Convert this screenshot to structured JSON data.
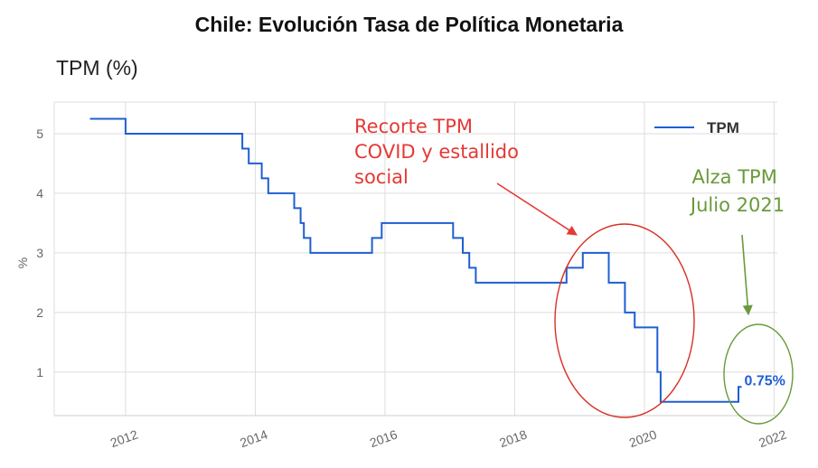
{
  "chart_data": {
    "type": "line",
    "title": "Chile: Evolución Tasa de Política Monetaria",
    "subtitle": "TPM (%)",
    "xlabel": "",
    "ylabel": "%",
    "xlim": [
      2010.9,
      2022.05
    ],
    "ylim": [
      0.27,
      5.53
    ],
    "x_ticks": [
      2012,
      2014,
      2016,
      2018,
      2020,
      2022
    ],
    "y_ticks": [
      1,
      2,
      3,
      4,
      5
    ],
    "grid": true,
    "legend": "top-right",
    "series": [
      {
        "name": "TPM",
        "color": "#1f5fd1",
        "step": "post",
        "points": [
          [
            2011.45,
            5.25
          ],
          [
            2012.0,
            5.0
          ],
          [
            2013.8,
            4.75
          ],
          [
            2013.9,
            4.5
          ],
          [
            2014.1,
            4.25
          ],
          [
            2014.2,
            4.0
          ],
          [
            2014.6,
            3.75
          ],
          [
            2014.7,
            3.5
          ],
          [
            2014.75,
            3.25
          ],
          [
            2014.85,
            3.0
          ],
          [
            2015.8,
            3.25
          ],
          [
            2015.95,
            3.5
          ],
          [
            2017.05,
            3.25
          ],
          [
            2017.2,
            3.0
          ],
          [
            2017.3,
            2.75
          ],
          [
            2017.4,
            2.5
          ],
          [
            2018.8,
            2.75
          ],
          [
            2019.05,
            3.0
          ],
          [
            2019.45,
            2.5
          ],
          [
            2019.7,
            2.0
          ],
          [
            2019.85,
            1.75
          ],
          [
            2020.2,
            1.0
          ],
          [
            2020.25,
            0.5
          ],
          [
            2021.45,
            0.75
          ],
          [
            2021.5,
            0.75
          ]
        ]
      }
    ],
    "last_value_label": "0.75%",
    "annotations": [
      {
        "text": [
          "Recorte TPM",
          "COVID y estallido",
          "social"
        ],
        "color": "#e53935"
      },
      {
        "text": [
          "Alza TPM",
          "Julio 2021"
        ],
        "color": "#6a9a3a"
      }
    ]
  }
}
